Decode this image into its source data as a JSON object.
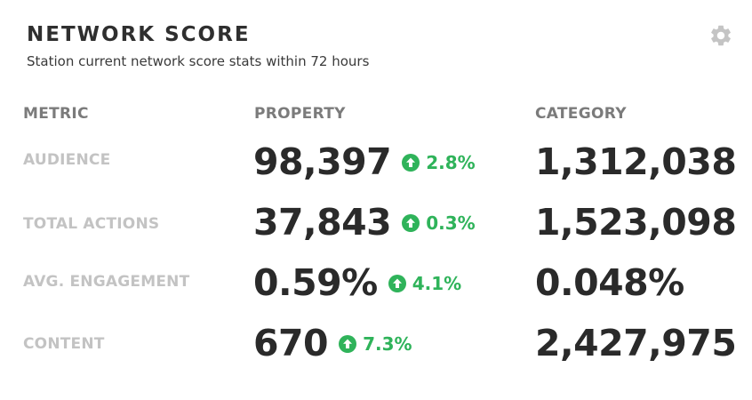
{
  "header": {
    "title": "NETWORK SCORE",
    "subtitle": "Station current network score stats within 72 hours",
    "settings_icon": "gear-icon"
  },
  "columns": {
    "metric": "METRIC",
    "property": "PROPERTY",
    "category": "CATEGORY"
  },
  "rows": [
    {
      "metric": "AUDIENCE",
      "property": "98,397",
      "change": "2.8%",
      "category": "1,312,038"
    },
    {
      "metric": "TOTAL ACTIONS",
      "property": "37,843",
      "change": "0.3%",
      "category": "1,523,098"
    },
    {
      "metric": "AVG. ENGAGEMENT",
      "property": "0.59%",
      "change": "4.1%",
      "category": "0.048%"
    },
    {
      "metric": "CONTENT",
      "property": "670",
      "change": "7.3%",
      "category": "2,427,975"
    }
  ],
  "colors": {
    "positive": "#2fb35a",
    "label_muted": "#c3c3c3",
    "header_muted": "#7b7b7b",
    "value": "#2a2a2a",
    "icon": "#c4c4c4"
  }
}
